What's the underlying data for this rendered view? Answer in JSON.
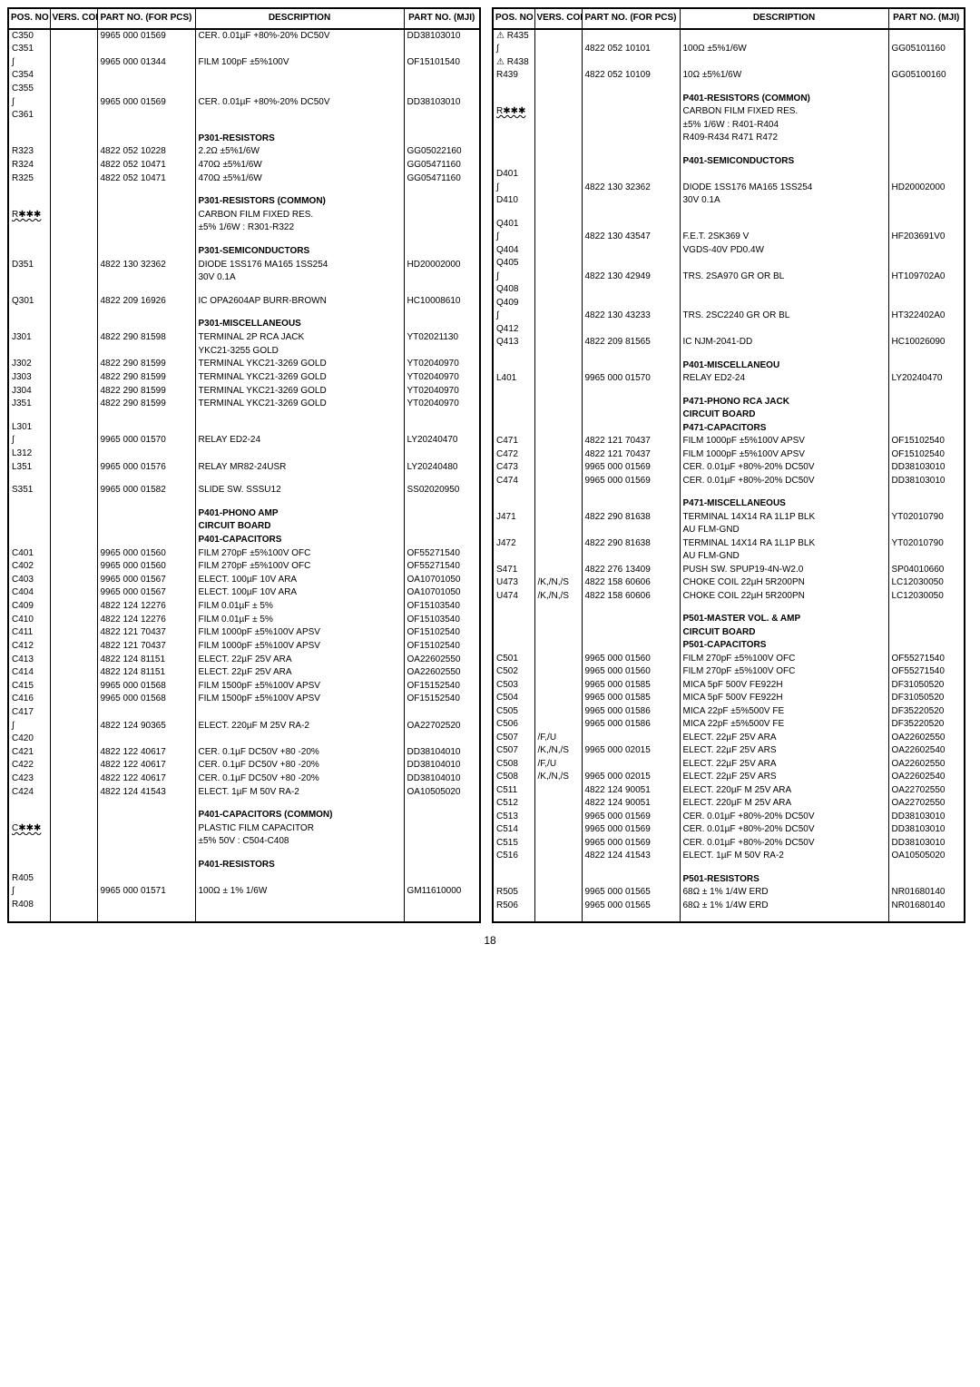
{
  "page_number": "18",
  "header": {
    "pos": "POS.\nNO",
    "color": "VERS.\nCOLOR",
    "part": "PART NO.\n(FOR PCS)",
    "desc": "DESCRIPTION",
    "mji": "PART NO.\n(MJI)"
  },
  "left_rows": [
    {
      "pos": "C350",
      "part": "9965 000 01569",
      "desc": "CER. 0.01µF +80%-20% DC50V",
      "mji": "DD38103010"
    },
    {
      "pos": "C351",
      "part": "",
      "desc": "",
      "mji": ""
    },
    {
      "pos": "∫",
      "part": "9965 000 01344",
      "desc": "FILM 100pF ±5%100V",
      "mji": "OF15101540"
    },
    {
      "pos": "C354",
      "part": "",
      "desc": "",
      "mji": ""
    },
    {
      "pos": "C355",
      "part": "",
      "desc": "",
      "mji": ""
    },
    {
      "pos": "∫",
      "part": "9965 000 01569",
      "desc": "CER. 0.01µF +80%-20% DC50V",
      "mji": "DD38103010"
    },
    {
      "pos": "C361",
      "part": "",
      "desc": "",
      "mji": ""
    },
    {
      "spacer": true
    },
    {
      "pos": "",
      "part": "",
      "desc": "P301-RESISTORS",
      "mji": "",
      "bold": true
    },
    {
      "pos": "R323",
      "part": "4822 052 10228",
      "desc": "2.2Ω ±5%1/6W",
      "mji": "GG05022160"
    },
    {
      "pos": "R324",
      "part": "4822 052 10471",
      "desc": "470Ω ±5%1/6W",
      "mji": "GG05471160"
    },
    {
      "pos": "R325",
      "part": "4822 052 10471",
      "desc": "470Ω ±5%1/6W",
      "mji": "GG05471160"
    },
    {
      "spacer": true
    },
    {
      "pos": "",
      "part": "",
      "desc": "P301-RESISTORS (COMMON)",
      "mji": "",
      "bold": true
    },
    {
      "pos": "R✱✱✱",
      "part": "",
      "desc": "CARBON FILM FIXED RES.",
      "mji": "",
      "zig": true
    },
    {
      "pos": "",
      "part": "",
      "desc": "±5% 1/6W : R301-R322",
      "mji": ""
    },
    {
      "spacer": true
    },
    {
      "pos": "",
      "part": "",
      "desc": "P301-SEMICONDUCTORS",
      "mji": "",
      "bold": true
    },
    {
      "pos": "D351",
      "part": "4822 130 32362",
      "desc": "DIODE 1SS176 MA165 1SS254",
      "mji": "HD20002000"
    },
    {
      "pos": "",
      "part": "",
      "desc": "30V 0.1A",
      "mji": ""
    },
    {
      "spacer": true
    },
    {
      "pos": "Q301",
      "part": "4822 209 16926",
      "desc": "IC OPA2604AP BURR-BROWN",
      "mji": "HC10008610"
    },
    {
      "spacer": true
    },
    {
      "pos": "",
      "part": "",
      "desc": "P301-MISCELLANEOUS",
      "mji": "",
      "bold": true
    },
    {
      "pos": "J301",
      "part": "4822 290 81598",
      "desc": "TERMINAL 2P RCA JACK",
      "mji": "YT02021130"
    },
    {
      "pos": "",
      "part": "",
      "desc": "YKC21-3255 GOLD",
      "mji": ""
    },
    {
      "pos": "J302",
      "part": "4822 290 81599",
      "desc": "TERMINAL YKC21-3269 GOLD",
      "mji": "YT02040970"
    },
    {
      "pos": "J303",
      "part": "4822 290 81599",
      "desc": "TERMINAL YKC21-3269 GOLD",
      "mji": "YT02040970"
    },
    {
      "pos": "J304",
      "part": "4822 290 81599",
      "desc": "TERMINAL YKC21-3269 GOLD",
      "mji": "YT02040970"
    },
    {
      "pos": "J351",
      "part": "4822 290 81599",
      "desc": "TERMINAL YKC21-3269 GOLD",
      "mji": "YT02040970"
    },
    {
      "spacer": true
    },
    {
      "pos": "L301",
      "part": "",
      "desc": "",
      "mji": ""
    },
    {
      "pos": "∫",
      "part": "9965 000 01570",
      "desc": "RELAY ED2-24",
      "mji": "LY20240470"
    },
    {
      "pos": "L312",
      "part": "",
      "desc": "",
      "mji": ""
    },
    {
      "pos": "L351",
      "part": "9965 000 01576",
      "desc": "RELAY MR82-24USR",
      "mji": "LY20240480"
    },
    {
      "spacer": true
    },
    {
      "pos": "S351",
      "part": "9965 000 01582",
      "desc": "SLIDE SW. SSSU12",
      "mji": "SS02020950"
    },
    {
      "spacer": true
    },
    {
      "pos": "",
      "part": "",
      "desc": "P401-PHONO AMP",
      "mji": "",
      "bold": true
    },
    {
      "pos": "",
      "part": "",
      "desc": "CIRCUIT BOARD",
      "mji": "",
      "bold": true
    },
    {
      "pos": "",
      "part": "",
      "desc": "P401-CAPACITORS",
      "mji": "",
      "bold": true
    },
    {
      "pos": "C401",
      "part": "9965 000 01560",
      "desc": "FILM 270pF ±5%100V OFC",
      "mji": "OF55271540"
    },
    {
      "pos": "C402",
      "part": "9965 000 01560",
      "desc": "FILM 270pF ±5%100V OFC",
      "mji": "OF55271540"
    },
    {
      "pos": "C403",
      "part": "9965 000 01567",
      "desc": "ELECT. 100µF 10V ARA",
      "mji": "OA10701050"
    },
    {
      "pos": "C404",
      "part": "9965 000 01567",
      "desc": "ELECT. 100µF 10V ARA",
      "mji": "OA10701050"
    },
    {
      "pos": "C409",
      "part": "4822 124 12276",
      "desc": "FILM 0.01µF ± 5%",
      "mji": "OF15103540"
    },
    {
      "pos": "C410",
      "part": "4822 124 12276",
      "desc": "FILM 0.01µF ± 5%",
      "mji": "OF15103540"
    },
    {
      "pos": "C411",
      "part": "4822 121 70437",
      "desc": "FILM 1000pF ±5%100V APSV",
      "mji": "OF15102540"
    },
    {
      "pos": "C412",
      "part": "4822 121 70437",
      "desc": "FILM 1000pF ±5%100V APSV",
      "mji": "OF15102540"
    },
    {
      "pos": "C413",
      "part": "4822 124 81151",
      "desc": "ELECT. 22µF 25V ARA",
      "mji": "OA22602550"
    },
    {
      "pos": "C414",
      "part": "4822 124 81151",
      "desc": "ELECT. 22µF 25V ARA",
      "mji": "OA22602550"
    },
    {
      "pos": "C415",
      "part": "9965 000 01568",
      "desc": "FILM 1500pF ±5%100V APSV",
      "mji": "OF15152540"
    },
    {
      "pos": "C416",
      "part": "9965 000 01568",
      "desc": "FILM 1500pF ±5%100V APSV",
      "mji": "OF15152540"
    },
    {
      "pos": "C417",
      "part": "",
      "desc": "",
      "mji": ""
    },
    {
      "pos": "∫",
      "part": "4822 124 90365",
      "desc": "ELECT. 220µF M 25V RA-2",
      "mji": "OA22702520"
    },
    {
      "pos": "C420",
      "part": "",
      "desc": "",
      "mji": ""
    },
    {
      "pos": "C421",
      "part": "4822 122 40617",
      "desc": "CER. 0.1µF DC50V +80 -20%",
      "mji": "DD38104010"
    },
    {
      "pos": "C422",
      "part": "4822 122 40617",
      "desc": "CER. 0.1µF DC50V +80 -20%",
      "mji": "DD38104010"
    },
    {
      "pos": "C423",
      "part": "4822 122 40617",
      "desc": "CER. 0.1µF DC50V +80 -20%",
      "mji": "DD38104010"
    },
    {
      "pos": "C424",
      "part": "4822 124 41543",
      "desc": "ELECT. 1µF M 50V RA-2",
      "mji": "OA10505020"
    },
    {
      "spacer": true
    },
    {
      "pos": "",
      "part": "",
      "desc": "P401-CAPACITORS (COMMON)",
      "mji": "",
      "bold": true
    },
    {
      "pos": "C✱✱✱",
      "part": "",
      "desc": "PLASTIC FILM CAPACITOR",
      "mji": "",
      "zig": true
    },
    {
      "pos": "",
      "part": "",
      "desc": "±5% 50V : C504-C408",
      "mji": ""
    },
    {
      "spacer": true
    },
    {
      "pos": "",
      "part": "",
      "desc": "P401-RESISTORS",
      "mji": "",
      "bold": true
    },
    {
      "pos": "R405",
      "part": "",
      "desc": "",
      "mji": ""
    },
    {
      "pos": "∫",
      "part": "9965 000 01571",
      "desc": "100Ω ± 1% 1/6W",
      "mji": "GM11610000"
    },
    {
      "pos": "R408",
      "part": "",
      "desc": "",
      "mji": ""
    },
    {
      "spacer": true
    }
  ],
  "right_rows": [
    {
      "pos": "⚠ R435",
      "part": "",
      "desc": "",
      "mji": ""
    },
    {
      "pos": "∫",
      "part": "4822 052 10101",
      "desc": "100Ω ±5%1/6W",
      "mji": "GG05101160"
    },
    {
      "pos": "⚠ R438",
      "part": "",
      "desc": "",
      "mji": ""
    },
    {
      "pos": "R439",
      "part": "4822 052 10109",
      "desc": "10Ω ±5%1/6W",
      "mji": "GG05100160"
    },
    {
      "spacer": true
    },
    {
      "pos": "",
      "part": "",
      "desc": "P401-RESISTORS (COMMON)",
      "mji": "",
      "bold": true
    },
    {
      "pos": "R✱✱✱",
      "part": "",
      "desc": "CARBON FILM FIXED RES.",
      "mji": "",
      "zig": true
    },
    {
      "pos": "",
      "part": "",
      "desc": "±5% 1/6W : R401-R404",
      "mji": ""
    },
    {
      "pos": "",
      "part": "",
      "desc": "R409-R434 R471 R472",
      "mji": ""
    },
    {
      "spacer": true
    },
    {
      "pos": "",
      "part": "",
      "desc": "P401-SEMICONDUCTORS",
      "mji": "",
      "bold": true
    },
    {
      "pos": "D401",
      "part": "",
      "desc": "",
      "mji": ""
    },
    {
      "pos": "∫",
      "part": "4822 130 32362",
      "desc": "DIODE 1SS176 MA165 1SS254",
      "mji": "HD20002000"
    },
    {
      "pos": "D410",
      "part": "",
      "desc": "30V 0.1A",
      "mji": ""
    },
    {
      "spacer": true
    },
    {
      "pos": "Q401",
      "part": "",
      "desc": "",
      "mji": ""
    },
    {
      "pos": "∫",
      "part": "4822 130 43547",
      "desc": "F.E.T. 2SK369 V",
      "mji": "HF203691V0"
    },
    {
      "pos": "Q404",
      "part": "",
      "desc": "VGDS-40V PD0.4W",
      "mji": ""
    },
    {
      "pos": "Q405",
      "part": "",
      "desc": "",
      "mji": ""
    },
    {
      "pos": "∫",
      "part": "4822 130 42949",
      "desc": "TRS. 2SA970 GR OR BL",
      "mji": "HT109702A0"
    },
    {
      "pos": "Q408",
      "part": "",
      "desc": "",
      "mji": ""
    },
    {
      "pos": "Q409",
      "part": "",
      "desc": "",
      "mji": ""
    },
    {
      "pos": "∫",
      "part": "4822 130 43233",
      "desc": "TRS. 2SC2240 GR OR BL",
      "mji": "HT322402A0"
    },
    {
      "pos": "Q412",
      "part": "",
      "desc": "",
      "mji": ""
    },
    {
      "pos": "Q413",
      "part": "4822 209 81565",
      "desc": "IC NJM-2041-DD",
      "mji": "HC10026090"
    },
    {
      "spacer": true
    },
    {
      "pos": "",
      "part": "",
      "desc": "P401-MISCELLANEOU",
      "mji": "",
      "bold": true
    },
    {
      "pos": "L401",
      "part": "9965 000 01570",
      "desc": "RELAY ED2-24",
      "mji": "LY20240470"
    },
    {
      "spacer": true
    },
    {
      "pos": "",
      "part": "",
      "desc": "P471-PHONO RCA JACK",
      "mji": "",
      "bold": true
    },
    {
      "pos": "",
      "part": "",
      "desc": "CIRCUIT BOARD",
      "mji": "",
      "bold": true
    },
    {
      "pos": "",
      "part": "",
      "desc": "P471-CAPACITORS",
      "mji": "",
      "bold": true
    },
    {
      "pos": "C471",
      "part": "4822 121 70437",
      "desc": "FILM 1000pF ±5%100V APSV",
      "mji": "OF15102540"
    },
    {
      "pos": "C472",
      "part": "4822 121 70437",
      "desc": "FILM 1000pF ±5%100V APSV",
      "mji": "OF15102540"
    },
    {
      "pos": "C473",
      "part": "9965 000 01569",
      "desc": "CER. 0.01µF +80%-20% DC50V",
      "mji": "DD38103010"
    },
    {
      "pos": "C474",
      "part": "9965 000 01569",
      "desc": "CER. 0.01µF +80%-20% DC50V",
      "mji": "DD38103010"
    },
    {
      "spacer": true
    },
    {
      "pos": "",
      "part": "",
      "desc": "P471-MISCELLANEOUS",
      "mji": "",
      "bold": true
    },
    {
      "pos": "J471",
      "part": "4822 290 81638",
      "desc": "TERMINAL 14X14 RA 1L1P BLK",
      "mji": "YT02010790"
    },
    {
      "pos": "",
      "part": "",
      "desc": "AU FLM-GND",
      "mji": ""
    },
    {
      "pos": "J472",
      "part": "4822 290 81638",
      "desc": "TERMINAL 14X14 RA 1L1P BLK",
      "mji": "YT02010790"
    },
    {
      "pos": "",
      "part": "",
      "desc": "AU FLM-GND",
      "mji": ""
    },
    {
      "pos": "S471",
      "part": "4822 276 13409",
      "desc": "PUSH SW. SPUP19-4N-W2.0",
      "mji": "SP04010660"
    },
    {
      "pos": "U473",
      "col": "/K,/N,/S",
      "part": "4822 158 60606",
      "desc": "CHOKE COIL 22µH 5R200PN",
      "mji": "LC12030050"
    },
    {
      "pos": "U474",
      "col": "/K,/N,/S",
      "part": "4822 158 60606",
      "desc": "CHOKE COIL 22µH 5R200PN",
      "mji": "LC12030050"
    },
    {
      "spacer": true
    },
    {
      "pos": "",
      "part": "",
      "desc": "P501-MASTER VOL. & AMP",
      "mji": "",
      "bold": true
    },
    {
      "pos": "",
      "part": "",
      "desc": "CIRCUIT BOARD",
      "mji": "",
      "bold": true
    },
    {
      "pos": "",
      "part": "",
      "desc": "P501-CAPACITORS",
      "mji": "",
      "bold": true
    },
    {
      "pos": "C501",
      "part": "9965 000 01560",
      "desc": "FILM 270pF ±5%100V OFC",
      "mji": "OF55271540"
    },
    {
      "pos": "C502",
      "part": "9965 000 01560",
      "desc": "FILM 270pF ±5%100V OFC",
      "mji": "OF55271540"
    },
    {
      "pos": "C503",
      "part": "9965 000 01585",
      "desc": "MICA 5pF 500V FE922H",
      "mji": "DF31050520"
    },
    {
      "pos": "C504",
      "part": "9965 000 01585",
      "desc": "MICA 5pF 500V FE922H",
      "mji": "DF31050520"
    },
    {
      "pos": "C505",
      "part": "9965 000 01586",
      "desc": "MICA 22pF ±5%500V FE",
      "mji": "DF35220520"
    },
    {
      "pos": "C506",
      "part": "9965 000 01586",
      "desc": "MICA 22pF ±5%500V FE",
      "mji": "DF35220520"
    },
    {
      "pos": "C507",
      "col": "/F,/U",
      "part": "",
      "desc": "ELECT. 22µF 25V ARA",
      "mji": "OA22602550"
    },
    {
      "pos": "C507",
      "col": "/K,/N,/S",
      "part": "9965 000 02015",
      "desc": "ELECT. 22µF 25V ARS",
      "mji": "OA22602540"
    },
    {
      "pos": "C508",
      "col": "/F,/U",
      "part": "",
      "desc": "ELECT. 22µF 25V ARA",
      "mji": "OA22602550"
    },
    {
      "pos": "C508",
      "col": "/K,/N,/S",
      "part": "9965 000 02015",
      "desc": "ELECT. 22µF 25V ARS",
      "mji": "OA22602540"
    },
    {
      "pos": "C511",
      "part": "4822 124 90051",
      "desc": "ELECT. 220µF M 25V ARA",
      "mji": "OA22702550"
    },
    {
      "pos": "C512",
      "part": "4822 124 90051",
      "desc": "ELECT. 220µF M 25V ARA",
      "mji": "OA22702550"
    },
    {
      "pos": "C513",
      "part": "9965 000 01569",
      "desc": "CER. 0.01µF +80%-20% DC50V",
      "mji": "DD38103010"
    },
    {
      "pos": "C514",
      "part": "9965 000 01569",
      "desc": "CER. 0.01µF +80%-20% DC50V",
      "mji": "DD38103010"
    },
    {
      "pos": "C515",
      "part": "9965 000 01569",
      "desc": "CER. 0.01µF +80%-20% DC50V",
      "mji": "DD38103010"
    },
    {
      "pos": "C516",
      "part": "4822 124 41543",
      "desc": "ELECT. 1µF M 50V RA-2",
      "mji": "OA10505020"
    },
    {
      "spacer": true
    },
    {
      "pos": "",
      "part": "",
      "desc": "P501-RESISTORS",
      "mji": "",
      "bold": true
    },
    {
      "pos": "R505",
      "part": "9965 000 01565",
      "desc": "68Ω ± 1% 1/4W ERD",
      "mji": "NR01680140"
    },
    {
      "pos": "R506",
      "part": "9965 000 01565",
      "desc": "68Ω ± 1% 1/4W ERD",
      "mji": "NR01680140"
    },
    {
      "spacer": true
    }
  ]
}
